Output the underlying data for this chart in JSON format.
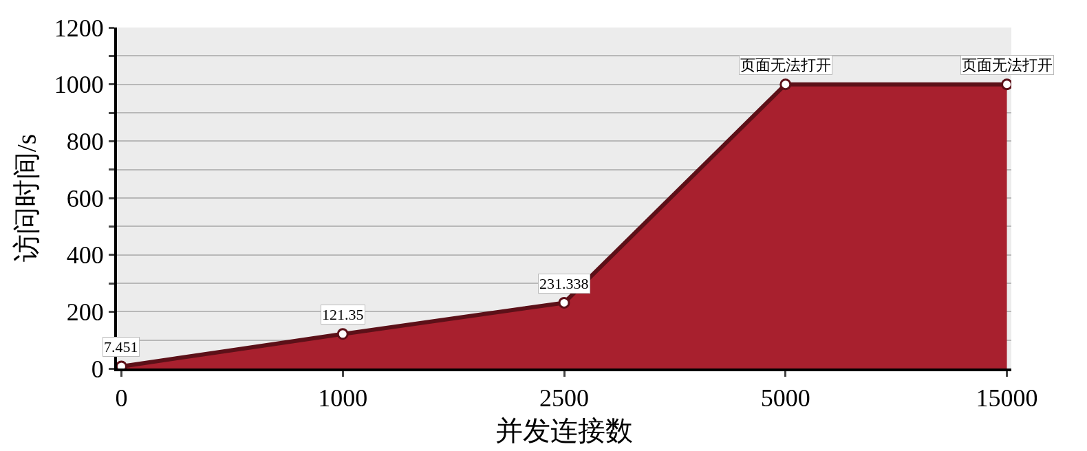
{
  "chart_data": {
    "type": "area",
    "xlabel": "并发连接数",
    "ylabel": "访问时间/s",
    "categories": [
      "0",
      "1000",
      "2500",
      "5000",
      "15000"
    ],
    "series": [
      {
        "color": "#a8202e",
        "values": [
          7.451,
          121.35,
          231.338,
          1000,
          1000
        ],
        "value_labels": [
          "7.451",
          "121.35",
          "231.338",
          "页面无法打开",
          "页面无法打开"
        ]
      }
    ],
    "ylim": [
      0,
      1200
    ],
    "yticks": [
      0,
      {
        "value": 100,
        "label": null
      },
      200,
      {
        "value": 300,
        "label": null
      },
      400,
      {
        "value": 500,
        "label": null
      },
      600,
      {
        "value": 700,
        "label": null
      },
      800,
      {
        "value": 900,
        "label": null
      },
      1000,
      {
        "value": 1100,
        "label": null
      },
      1200
    ],
    "grid": "y",
    "marker": "circle"
  }
}
